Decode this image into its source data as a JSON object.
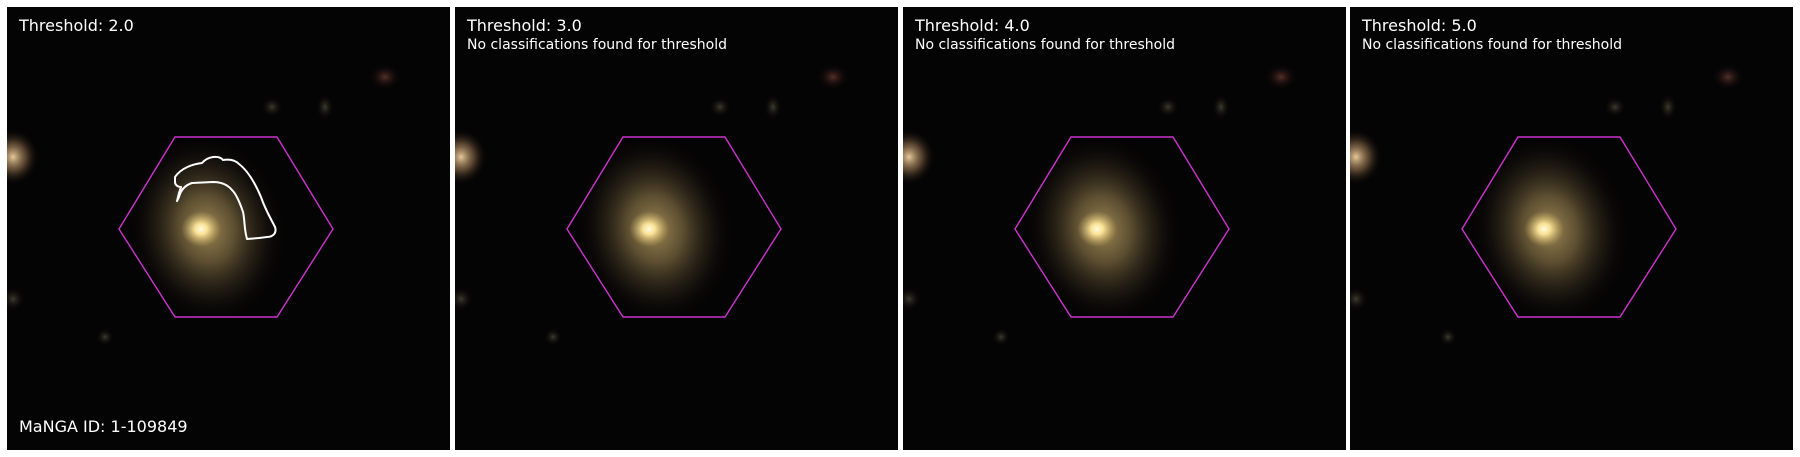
{
  "figure": {
    "panels": [
      {
        "title": "Threshold: 2.0",
        "message": "",
        "footer": "MaNGA ID: 1-109849",
        "has_contour": true
      },
      {
        "title": "Threshold: 3.0",
        "message": "No classifications found for threshold",
        "footer": "",
        "has_contour": false
      },
      {
        "title": "Threshold: 4.0",
        "message": "No classifications found for threshold",
        "footer": "",
        "has_contour": false
      },
      {
        "title": "Threshold: 5.0",
        "message": "No classifications found for threshold",
        "footer": "",
        "has_contour": false
      }
    ],
    "colors": {
      "background": "#050404",
      "hexagon": "#cc33cc",
      "contour": "#ffffff",
      "galaxy_core": "#fff2b0",
      "galaxy_halo": "#9a8452",
      "text": "#ffffff"
    }
  }
}
